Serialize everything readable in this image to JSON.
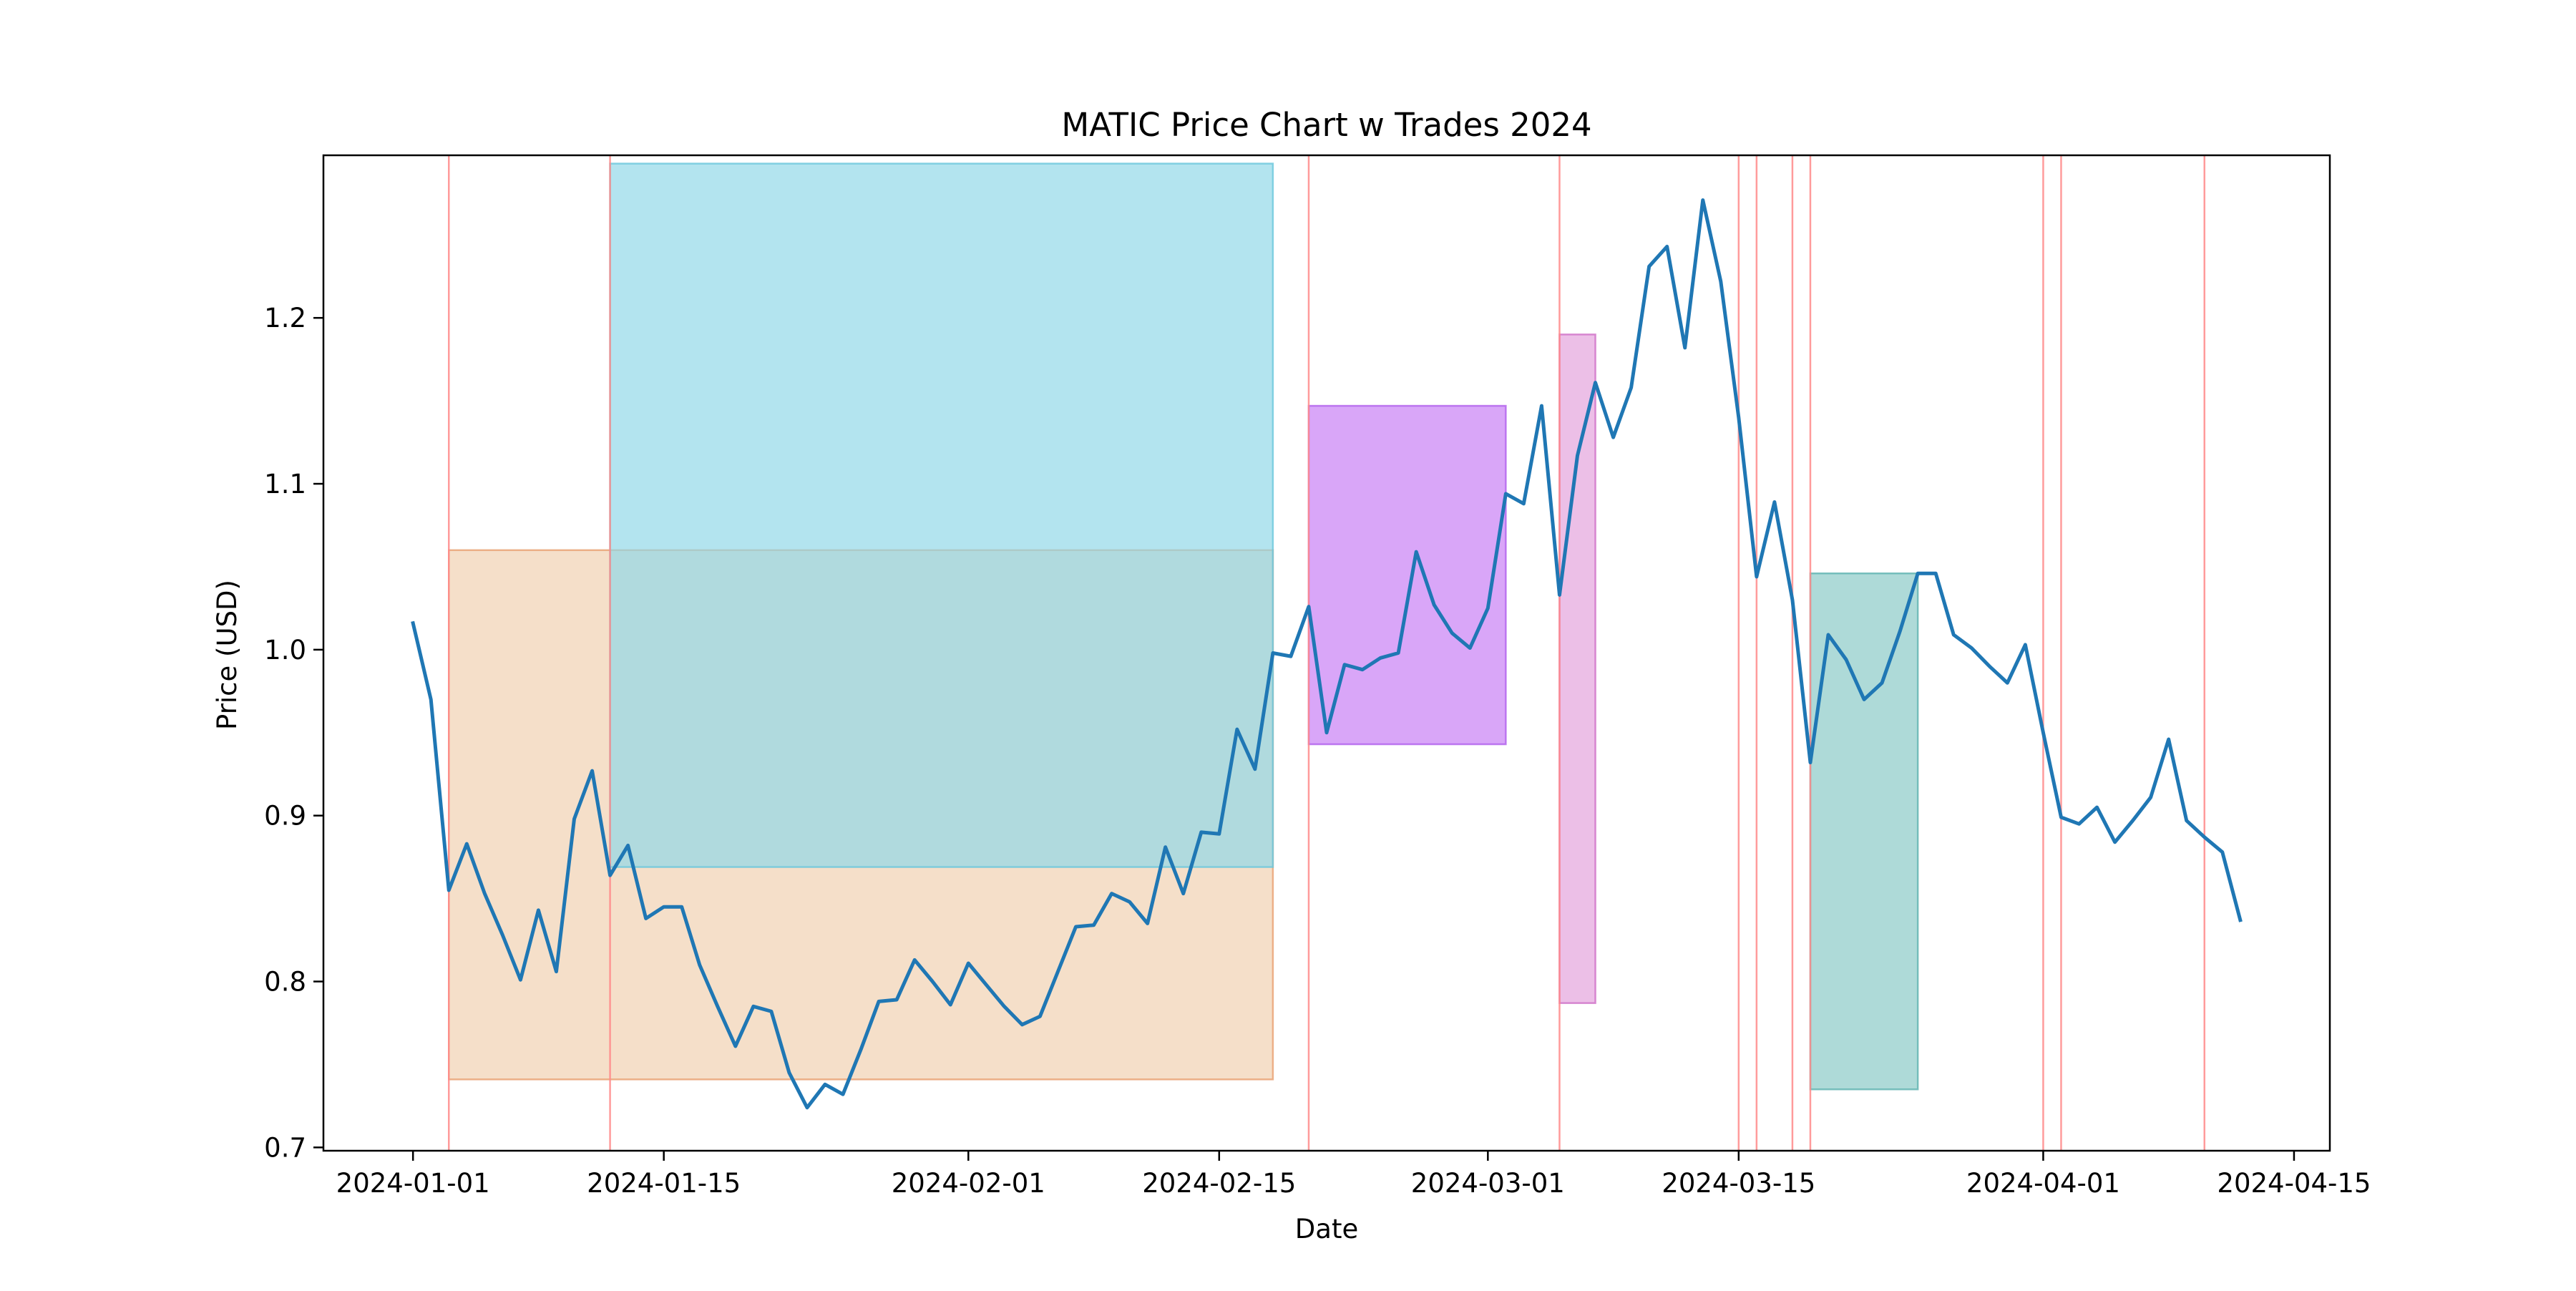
{
  "chart_data": {
    "type": "line",
    "title": "MATIC Price Chart w Trades 2024",
    "xlabel": "Date",
    "ylabel": "Price (USD)",
    "xlim": [
      "2023-12-27",
      "2024-04-17"
    ],
    "ylim": [
      0.698,
      1.298
    ],
    "grid": false,
    "legend": "none",
    "colors": {
      "line": "#1f77b4",
      "trade_marker": "#ff8a8a",
      "axes": "#000000"
    },
    "x_ticks": [
      "2024-01-01",
      "2024-01-15",
      "2024-02-01",
      "2024-02-15",
      "2024-03-01",
      "2024-03-15",
      "2024-04-01",
      "2024-04-15"
    ],
    "y_ticks": [
      0.7,
      0.8,
      0.9,
      1.0,
      1.1,
      1.2
    ],
    "series": [
      {
        "start_date": "2024-01-01",
        "values": [
          1.016,
          0.97,
          0.855,
          0.883,
          0.853,
          0.828,
          0.801,
          0.843,
          0.806,
          0.898,
          0.927,
          0.864,
          0.882,
          0.838,
          0.845,
          0.845,
          0.81,
          0.785,
          0.761,
          0.785,
          0.782,
          0.745,
          0.724,
          0.738,
          0.732,
          0.759,
          0.788,
          0.789,
          0.813,
          0.8,
          0.786,
          0.811,
          0.798,
          0.785,
          0.774,
          0.779,
          0.806,
          0.833,
          0.834,
          0.853,
          0.848,
          0.835,
          0.881,
          0.853,
          0.89,
          0.889,
          0.952,
          0.928,
          0.998,
          0.996,
          1.026,
          0.95,
          0.991,
          0.988,
          0.995,
          0.998,
          1.059,
          1.027,
          1.01,
          1.001,
          1.025,
          1.094,
          1.088,
          1.147,
          1.033,
          1.117,
          1.161,
          1.128,
          1.158,
          1.231,
          1.243,
          1.182,
          1.271,
          1.222,
          1.14,
          1.044,
          1.089,
          1.03,
          0.932,
          1.009,
          0.994,
          0.97,
          0.98,
          1.011,
          1.046,
          1.046,
          1.009,
          1.001,
          0.99,
          0.98,
          1.003,
          0.95,
          0.899,
          0.895,
          0.905,
          0.884,
          0.897,
          0.911,
          0.946,
          0.897,
          0.887,
          0.878,
          0.837
        ]
      }
    ],
    "trade_dates": [
      "2024-01-03",
      "2024-01-12",
      "2024-02-20",
      "2024-03-05",
      "2024-03-15",
      "2024-03-16",
      "2024-03-18",
      "2024-03-19",
      "2024-04-01",
      "2024-04-02",
      "2024-04-10"
    ],
    "trade_boxes": [
      {
        "start": "2024-01-03",
        "end": "2024-02-18",
        "low": 0.741,
        "high": 1.06,
        "fill": "#f0d0b0",
        "edge": "#e8a070"
      },
      {
        "start": "2024-01-12",
        "end": "2024-02-18",
        "low": 0.869,
        "high": 1.293,
        "fill": "#8fd7e8",
        "edge": "#6cc7dc"
      },
      {
        "start": "2024-02-20",
        "end": "2024-03-02",
        "low": 0.943,
        "high": 1.147,
        "fill": "#c77cf5",
        "edge": "#b060ec"
      },
      {
        "start": "2024-03-05",
        "end": "2024-03-07",
        "low": 0.787,
        "high": 1.19,
        "fill": "#e3a0dc",
        "edge": "#d070c8"
      },
      {
        "start": "2024-03-19",
        "end": "2024-03-25",
        "low": 0.735,
        "high": 1.046,
        "fill": "#88c9c6",
        "edge": "#5fb3b0"
      }
    ]
  }
}
